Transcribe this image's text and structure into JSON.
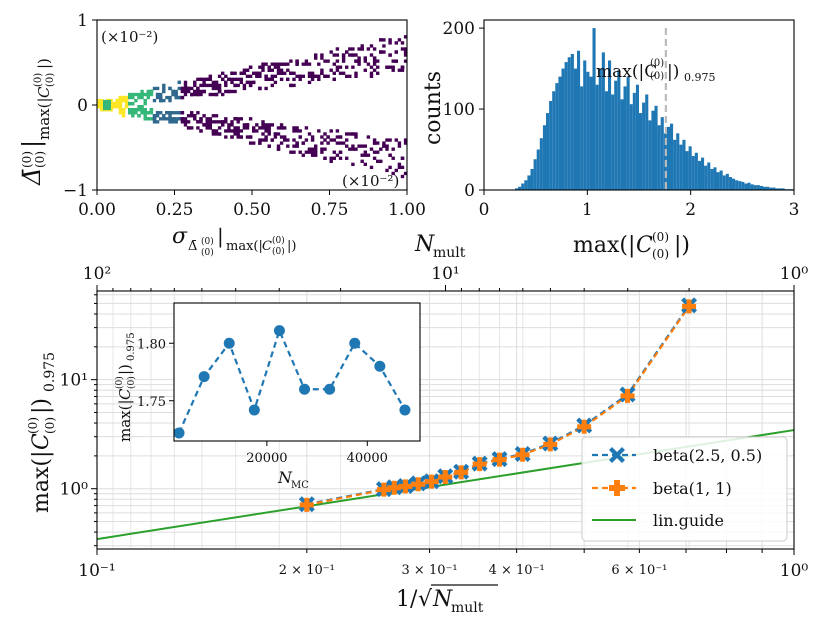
{
  "chart_data": [
    {
      "id": "scatter_hist2d",
      "type": "heatmap",
      "title": "",
      "xlabel": "σ_{Δ̄(0)(0)}|max(|C(0)(0)|)",
      "ylabel": "Δ̄(0)(0)|max(|C(0)(0)|)",
      "xlim": [
        0,
        1
      ],
      "ylim": [
        -1,
        1
      ],
      "x_ticks": [
        0,
        0.25,
        0.5,
        0.75,
        1.0
      ],
      "x_tick_labels": [
        "0.00",
        "0.25",
        "0.50",
        "0.75",
        "1.00"
      ],
      "y_ticks": [
        -1,
        0,
        1
      ],
      "y_tick_labels": [
        "−1",
        "0",
        "1"
      ],
      "y_scale_label": "(×10⁻²)",
      "x_scale_label": "(×10⁻²)",
      "description_cone": {
        "upper_slope": 0.62,
        "lower_slope": -0.62,
        "spread": 0.18
      }
    },
    {
      "id": "histogram",
      "type": "bar",
      "title": "",
      "xlabel": "max(|C(0)(0)|)",
      "ylabel": "counts",
      "xlim": [
        0,
        3
      ],
      "ylim": [
        0,
        210
      ],
      "x_ticks": [
        0,
        1,
        2,
        3
      ],
      "y_ticks": [
        0,
        100,
        200
      ],
      "bin_width": 0.03,
      "bin_start": 0.3,
      "values": [
        2,
        4,
        8,
        12,
        18,
        26,
        38,
        50,
        64,
        80,
        95,
        110,
        122,
        132,
        140,
        150,
        158,
        164,
        168,
        150,
        172,
        128,
        160,
        146,
        140,
        200,
        130,
        150,
        170,
        122,
        160,
        118,
        135,
        148,
        112,
        128,
        140,
        106,
        120,
        130,
        95,
        108,
        118,
        86,
        98,
        104,
        80,
        90,
        70,
        78,
        82,
        62,
        70,
        56,
        62,
        48,
        54,
        42,
        46,
        36,
        40,
        30,
        34,
        26,
        28,
        22,
        24,
        18,
        20,
        16,
        14,
        12,
        11,
        10,
        8,
        9,
        7,
        6,
        6,
        5,
        4,
        4,
        3,
        3,
        2,
        2,
        2,
        1,
        1,
        1
      ],
      "quantile_line": {
        "x": 1.76,
        "label": "max(|C(0)(0)|)0.975"
      },
      "color": "#1f77b4"
    },
    {
      "id": "loglog",
      "type": "line",
      "title": "",
      "xlabel": "1/√N_mult",
      "ylabel": "max(|C(0)(0)|)0.975",
      "top_xlabel": "N_mult",
      "xscale": "log",
      "yscale": "log",
      "xlim": [
        0.1,
        1.0
      ],
      "ylim": [
        0.28,
        65
      ],
      "x_tick_labels": [
        "10⁻¹",
        "10⁰"
      ],
      "x_minor_labels": [
        "2 × 10⁻¹",
        "3 × 10⁻¹",
        "4 × 10⁻¹",
        "6 × 10⁻¹"
      ],
      "top_tick_labels": [
        "10²",
        "10¹",
        "10⁰"
      ],
      "y_tick_labels": [
        "10⁰",
        "10¹"
      ],
      "series": [
        {
          "name": "beta(2.5, 0.5)",
          "color": "#1f77b4",
          "marker": "X",
          "x": [
            0.2,
            0.258,
            0.267,
            0.277,
            0.289,
            0.302,
            0.316,
            0.333,
            0.354,
            0.378,
            0.408,
            0.447,
            0.5,
            0.577,
            0.707
          ],
          "y": [
            0.72,
            0.99,
            1.03,
            1.06,
            1.12,
            1.17,
            1.3,
            1.43,
            1.7,
            1.87,
            2.08,
            2.6,
            3.8,
            7.3,
            48
          ]
        },
        {
          "name": "beta(1, 1)",
          "color": "#ff7f0e",
          "marker": "P",
          "x": [
            0.2,
            0.258,
            0.267,
            0.277,
            0.289,
            0.302,
            0.316,
            0.333,
            0.354,
            0.378,
            0.408,
            0.447,
            0.5,
            0.577,
            0.707
          ],
          "y": [
            0.71,
            0.98,
            1.02,
            1.05,
            1.1,
            1.16,
            1.28,
            1.41,
            1.68,
            1.85,
            2.05,
            2.55,
            3.7,
            7.1,
            47
          ]
        },
        {
          "name": "lin.guide",
          "color": "#2ca02c",
          "marker": "none",
          "x": [
            0.1,
            1.0
          ],
          "y": [
            0.345,
            3.45
          ]
        }
      ],
      "legend_location": "lower-right"
    },
    {
      "id": "inset",
      "type": "line",
      "title": "",
      "xlabel": "N_MC",
      "ylabel": "max(|C(0)(0)|)0.975",
      "xlim": [
        1500,
        50500
      ],
      "ylim": [
        1.715,
        1.835
      ],
      "x_ticks": [
        20000,
        40000
      ],
      "x_tick_labels": [
        "20000",
        "40000"
      ],
      "y_ticks": [
        1.75,
        1.8
      ],
      "y_tick_labels": [
        "1.75",
        "1.80"
      ],
      "x": [
        2500,
        7500,
        12500,
        17500,
        22500,
        27500,
        32500,
        37500,
        42500,
        47500
      ],
      "y": [
        1.722,
        1.771,
        1.8,
        1.742,
        1.811,
        1.76,
        1.76,
        1.8,
        1.78,
        1.742
      ],
      "color": "#1f77b4"
    }
  ],
  "labels": {
    "scatter_y_scale": "(×10⁻²)",
    "scatter_x_scale": "(×10⁻²)",
    "hist_quantile": "max(|C",
    "legend_beta25": "beta(2.5, 0.5)",
    "legend_beta11": "beta(1, 1)",
    "legend_lin": "lin.guide",
    "nmult_top": "N",
    "inset_xlabel": "N"
  }
}
